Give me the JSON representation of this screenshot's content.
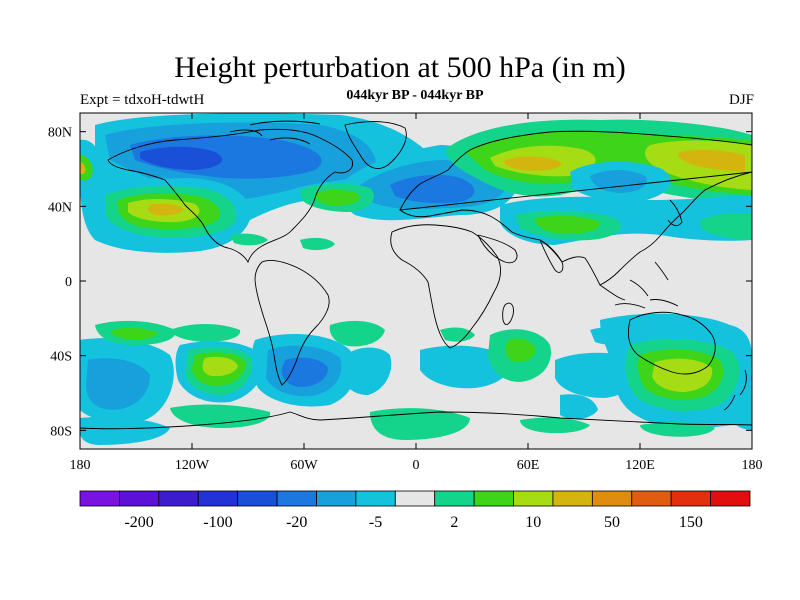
{
  "title": "Height perturbation at 500 hPa (in m)",
  "left_label": "Expt = tdxoH-tdwtH",
  "center_label": "044kyr BP - 044kyr BP",
  "right_label": "DJF",
  "map": {
    "projection": "cylindrical equidistant",
    "lon_range": [
      -180,
      180
    ],
    "lat_range": [
      -90,
      90
    ],
    "x_ticks": [
      {
        "lon": -180,
        "label": "180"
      },
      {
        "lon": -120,
        "label": "120W"
      },
      {
        "lon": -60,
        "label": "60W"
      },
      {
        "lon": 0,
        "label": "0"
      },
      {
        "lon": 60,
        "label": "60E"
      },
      {
        "lon": 120,
        "label": "120E"
      },
      {
        "lon": 180,
        "label": "180"
      }
    ],
    "y_ticks": [
      {
        "lat": 80,
        "label": "80N"
      },
      {
        "lat": 40,
        "label": "40N"
      },
      {
        "lat": 0,
        "label": "0"
      },
      {
        "lat": -40,
        "label": "40S"
      },
      {
        "lat": -80,
        "label": "80S"
      }
    ],
    "background_color": "#e6e6e6"
  },
  "colorbar": {
    "colors": [
      "#7a12e0",
      "#5c12d6",
      "#3d1ccc",
      "#2232d4",
      "#1a4fd8",
      "#1a78e0",
      "#17a0dc",
      "#14c2de",
      "#e6e6e6",
      "#14d48c",
      "#3dd41a",
      "#a6dc14",
      "#d4b40e",
      "#e08c0e",
      "#e05c0e",
      "#e0300e",
      "#e00e0e"
    ],
    "labels": [
      {
        "after_box": 2,
        "text": "-200"
      },
      {
        "after_box": 4,
        "text": "-100"
      },
      {
        "after_box": 6,
        "text": "-20"
      },
      {
        "after_box": 8,
        "text": "-5"
      },
      {
        "after_box": 10,
        "text": "2"
      },
      {
        "after_box": 12,
        "text": "10"
      },
      {
        "after_box": 14,
        "text": "50"
      },
      {
        "after_box": 16,
        "text": "150"
      }
    ]
  },
  "chart_data": {
    "type": "heatmap",
    "title": "Height perturbation at 500 hPa (in m)",
    "xlabel": "",
    "ylabel": "",
    "xlim": [
      -180,
      180
    ],
    "ylim": [
      -90,
      90
    ],
    "season": "DJF",
    "features": [
      {
        "sign": "negative",
        "lon": -100,
        "lat": 65,
        "max_level": -50
      },
      {
        "sign": "negative",
        "lon": -45,
        "lat": 60,
        "max_level": -20
      },
      {
        "sign": "negative",
        "lon": 15,
        "lat": 50,
        "max_level": -20
      },
      {
        "sign": "negative",
        "lon": 110,
        "lat": 50,
        "max_level": -20
      },
      {
        "sign": "positive",
        "lon": -135,
        "lat": 40,
        "max_level": 50
      },
      {
        "sign": "positive",
        "lon": -40,
        "lat": 42,
        "max_level": 10
      },
      {
        "sign": "positive",
        "lon": 60,
        "lat": 64,
        "max_level": 50
      },
      {
        "sign": "positive",
        "lon": 155,
        "lat": 62,
        "max_level": 50
      },
      {
        "sign": "positive",
        "lon": 65,
        "lat": 32,
        "max_level": 10
      },
      {
        "sign": "positive",
        "lon": -105,
        "lat": -42,
        "max_level": 10
      },
      {
        "sign": "positive",
        "lon": 145,
        "lat": -50,
        "max_level": 50
      },
      {
        "sign": "negative",
        "lon": -55,
        "lat": -50,
        "max_level": -20
      },
      {
        "sign": "negative",
        "lon": -150,
        "lat": -55,
        "max_level": -20
      },
      {
        "sign": "negative",
        "lon": 100,
        "lat": -40,
        "max_level": -5
      }
    ]
  }
}
